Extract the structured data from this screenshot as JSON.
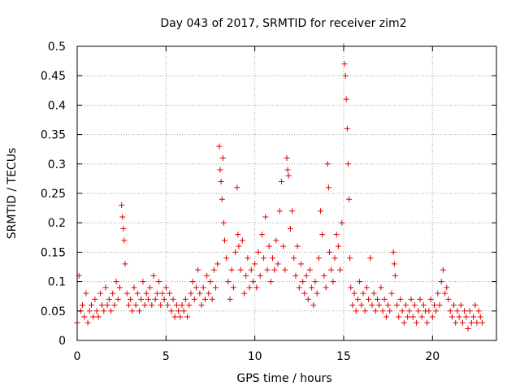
{
  "chart_data": {
    "type": "scatter",
    "title": "Day 043 of 2017, SRMTID for receiver zim2",
    "xlabel": "GPS time / hours",
    "ylabel": "SRMTID / TECUs",
    "xlim": [
      0,
      23.6
    ],
    "ylim": [
      0,
      0.5
    ],
    "x_ticks": [
      "0",
      "5",
      "10",
      "15",
      "20"
    ],
    "y_ticks": [
      "0",
      "0.05",
      "0.1",
      "0.15",
      "0.2",
      "0.25",
      "0.3",
      "0.35",
      "0.4",
      "0.45",
      "0.5"
    ],
    "x_tick_values": [
      0,
      5,
      10,
      15,
      20
    ],
    "y_tick_values": [
      0,
      0.05,
      0.1,
      0.15,
      0.2,
      0.25,
      0.3,
      0.35,
      0.4,
      0.45,
      0.5
    ],
    "grid": true,
    "marker": "+",
    "color": "#e00000",
    "series": [
      {
        "name": "SRMTID",
        "points": [
          [
            0.0,
            0.03
          ],
          [
            0.1,
            0.11
          ],
          [
            0.2,
            0.05
          ],
          [
            0.3,
            0.06
          ],
          [
            0.4,
            0.04
          ],
          [
            0.5,
            0.08
          ],
          [
            0.6,
            0.03
          ],
          [
            0.7,
            0.05
          ],
          [
            0.8,
            0.06
          ],
          [
            0.9,
            0.04
          ],
          [
            1.0,
            0.07
          ],
          [
            1.1,
            0.05
          ],
          [
            1.2,
            0.04
          ],
          [
            1.3,
            0.08
          ],
          [
            1.4,
            0.06
          ],
          [
            1.5,
            0.05
          ],
          [
            1.6,
            0.09
          ],
          [
            1.7,
            0.06
          ],
          [
            1.8,
            0.07
          ],
          [
            1.9,
            0.05
          ],
          [
            2.0,
            0.08
          ],
          [
            2.1,
            0.06
          ],
          [
            2.2,
            0.1
          ],
          [
            2.3,
            0.07
          ],
          [
            2.4,
            0.09
          ],
          [
            2.5,
            0.23
          ],
          [
            2.55,
            0.21
          ],
          [
            2.6,
            0.19
          ],
          [
            2.65,
            0.17
          ],
          [
            2.7,
            0.13
          ],
          [
            2.8,
            0.08
          ],
          [
            2.9,
            0.06
          ],
          [
            3.0,
            0.07
          ],
          [
            3.1,
            0.05
          ],
          [
            3.2,
            0.09
          ],
          [
            3.3,
            0.06
          ],
          [
            3.4,
            0.08
          ],
          [
            3.5,
            0.05
          ],
          [
            3.6,
            0.07
          ],
          [
            3.7,
            0.1
          ],
          [
            3.8,
            0.06
          ],
          [
            3.9,
            0.08
          ],
          [
            4.0,
            0.07
          ],
          [
            4.1,
            0.09
          ],
          [
            4.2,
            0.06
          ],
          [
            4.3,
            0.11
          ],
          [
            4.4,
            0.07
          ],
          [
            4.5,
            0.08
          ],
          [
            4.6,
            0.1
          ],
          [
            4.7,
            0.06
          ],
          [
            4.8,
            0.08
          ],
          [
            4.9,
            0.07
          ],
          [
            5.0,
            0.09
          ],
          [
            5.1,
            0.06
          ],
          [
            5.2,
            0.08
          ],
          [
            5.3,
            0.05
          ],
          [
            5.4,
            0.07
          ],
          [
            5.5,
            0.04
          ],
          [
            5.6,
            0.06
          ],
          [
            5.7,
            0.05
          ],
          [
            5.8,
            0.04
          ],
          [
            5.9,
            0.06
          ],
          [
            6.0,
            0.05
          ],
          [
            6.1,
            0.07
          ],
          [
            6.2,
            0.04
          ],
          [
            6.3,
            0.06
          ],
          [
            6.4,
            0.08
          ],
          [
            6.5,
            0.1
          ],
          [
            6.6,
            0.07
          ],
          [
            6.7,
            0.09
          ],
          [
            6.8,
            0.12
          ],
          [
            6.9,
            0.08
          ],
          [
            7.0,
            0.06
          ],
          [
            7.1,
            0.09
          ],
          [
            7.2,
            0.07
          ],
          [
            7.3,
            0.11
          ],
          [
            7.4,
            0.08
          ],
          [
            7.5,
            0.1
          ],
          [
            7.6,
            0.07
          ],
          [
            7.7,
            0.12
          ],
          [
            7.8,
            0.09
          ],
          [
            7.9,
            0.13
          ],
          [
            8.0,
            0.33
          ],
          [
            8.05,
            0.29
          ],
          [
            8.1,
            0.27
          ],
          [
            8.15,
            0.24
          ],
          [
            8.2,
            0.31
          ],
          [
            8.25,
            0.2
          ],
          [
            8.3,
            0.17
          ],
          [
            8.4,
            0.14
          ],
          [
            8.5,
            0.1
          ],
          [
            8.6,
            0.07
          ],
          [
            8.7,
            0.12
          ],
          [
            8.8,
            0.09
          ],
          [
            8.9,
            0.15
          ],
          [
            9.0,
            0.26
          ],
          [
            9.05,
            0.18
          ],
          [
            9.1,
            0.16
          ],
          [
            9.2,
            0.12
          ],
          [
            9.3,
            0.17
          ],
          [
            9.4,
            0.08
          ],
          [
            9.5,
            0.11
          ],
          [
            9.6,
            0.14
          ],
          [
            9.7,
            0.09
          ],
          [
            9.8,
            0.12
          ],
          [
            9.9,
            0.1
          ],
          [
            10.0,
            0.13
          ],
          [
            10.1,
            0.09
          ],
          [
            10.2,
            0.15
          ],
          [
            10.3,
            0.11
          ],
          [
            10.4,
            0.18
          ],
          [
            10.5,
            0.14
          ],
          [
            10.6,
            0.21
          ],
          [
            10.7,
            0.12
          ],
          [
            10.8,
            0.16
          ],
          [
            10.9,
            0.1
          ],
          [
            11.0,
            0.14
          ],
          [
            11.1,
            0.12
          ],
          [
            11.2,
            0.17
          ],
          [
            11.3,
            0.13
          ],
          [
            11.4,
            0.22
          ],
          [
            11.5,
            0.27
          ],
          [
            11.6,
            0.16
          ],
          [
            11.7,
            0.12
          ],
          [
            11.8,
            0.31
          ],
          [
            11.85,
            0.29
          ],
          [
            11.9,
            0.28
          ],
          [
            12.0,
            0.19
          ],
          [
            12.1,
            0.22
          ],
          [
            12.2,
            0.14
          ],
          [
            12.3,
            0.11
          ],
          [
            12.4,
            0.16
          ],
          [
            12.5,
            0.09
          ],
          [
            12.6,
            0.13
          ],
          [
            12.7,
            0.1
          ],
          [
            12.8,
            0.08
          ],
          [
            12.9,
            0.11
          ],
          [
            13.0,
            0.07
          ],
          [
            13.1,
            0.12
          ],
          [
            13.2,
            0.09
          ],
          [
            13.3,
            0.06
          ],
          [
            13.4,
            0.1
          ],
          [
            13.5,
            0.08
          ],
          [
            13.6,
            0.14
          ],
          [
            13.7,
            0.22
          ],
          [
            13.8,
            0.18
          ],
          [
            13.9,
            0.11
          ],
          [
            14.0,
            0.09
          ],
          [
            14.1,
            0.3
          ],
          [
            14.15,
            0.26
          ],
          [
            14.2,
            0.15
          ],
          [
            14.3,
            0.12
          ],
          [
            14.4,
            0.1
          ],
          [
            14.5,
            0.14
          ],
          [
            14.6,
            0.18
          ],
          [
            14.7,
            0.16
          ],
          [
            14.8,
            0.12
          ],
          [
            14.9,
            0.2
          ],
          [
            15.0,
            0.5
          ],
          [
            15.05,
            0.47
          ],
          [
            15.1,
            0.45
          ],
          [
            15.15,
            0.41
          ],
          [
            15.2,
            0.36
          ],
          [
            15.25,
            0.3
          ],
          [
            15.3,
            0.24
          ],
          [
            15.35,
            0.14
          ],
          [
            15.4,
            0.09
          ],
          [
            15.5,
            0.06
          ],
          [
            15.6,
            0.08
          ],
          [
            15.7,
            0.05
          ],
          [
            15.8,
            0.07
          ],
          [
            15.9,
            0.1
          ],
          [
            16.0,
            0.06
          ],
          [
            16.1,
            0.08
          ],
          [
            16.2,
            0.05
          ],
          [
            16.3,
            0.09
          ],
          [
            16.4,
            0.07
          ],
          [
            16.5,
            0.14
          ],
          [
            16.6,
            0.06
          ],
          [
            16.7,
            0.08
          ],
          [
            16.8,
            0.05
          ],
          [
            16.9,
            0.07
          ],
          [
            17.0,
            0.06
          ],
          [
            17.1,
            0.09
          ],
          [
            17.2,
            0.05
          ],
          [
            17.3,
            0.07
          ],
          [
            17.4,
            0.04
          ],
          [
            17.5,
            0.06
          ],
          [
            17.6,
            0.05
          ],
          [
            17.7,
            0.08
          ],
          [
            17.8,
            0.15
          ],
          [
            17.85,
            0.13
          ],
          [
            17.9,
            0.11
          ],
          [
            18.0,
            0.06
          ],
          [
            18.1,
            0.04
          ],
          [
            18.2,
            0.07
          ],
          [
            18.3,
            0.05
          ],
          [
            18.4,
            0.03
          ],
          [
            18.5,
            0.06
          ],
          [
            18.6,
            0.04
          ],
          [
            18.7,
            0.05
          ],
          [
            18.8,
            0.07
          ],
          [
            18.9,
            0.04
          ],
          [
            19.0,
            0.06
          ],
          [
            19.1,
            0.03
          ],
          [
            19.2,
            0.05
          ],
          [
            19.3,
            0.07
          ],
          [
            19.4,
            0.04
          ],
          [
            19.5,
            0.06
          ],
          [
            19.6,
            0.05
          ],
          [
            19.7,
            0.03
          ],
          [
            19.8,
            0.05
          ],
          [
            19.9,
            0.07
          ],
          [
            20.0,
            0.04
          ],
          [
            20.1,
            0.06
          ],
          [
            20.2,
            0.05
          ],
          [
            20.3,
            0.08
          ],
          [
            20.4,
            0.06
          ],
          [
            20.5,
            0.1
          ],
          [
            20.6,
            0.12
          ],
          [
            20.7,
            0.08
          ],
          [
            20.8,
            0.09
          ],
          [
            20.9,
            0.07
          ],
          [
            21.0,
            0.05
          ],
          [
            21.1,
            0.04
          ],
          [
            21.2,
            0.06
          ],
          [
            21.3,
            0.03
          ],
          [
            21.4,
            0.05
          ],
          [
            21.5,
            0.04
          ],
          [
            21.6,
            0.06
          ],
          [
            21.7,
            0.03
          ],
          [
            21.8,
            0.05
          ],
          [
            21.9,
            0.04
          ],
          [
            22.0,
            0.02
          ],
          [
            22.1,
            0.05
          ],
          [
            22.2,
            0.03
          ],
          [
            22.3,
            0.04
          ],
          [
            22.4,
            0.06
          ],
          [
            22.5,
            0.03
          ],
          [
            22.6,
            0.05
          ],
          [
            22.7,
            0.04
          ],
          [
            22.8,
            0.03
          ]
        ]
      }
    ]
  }
}
